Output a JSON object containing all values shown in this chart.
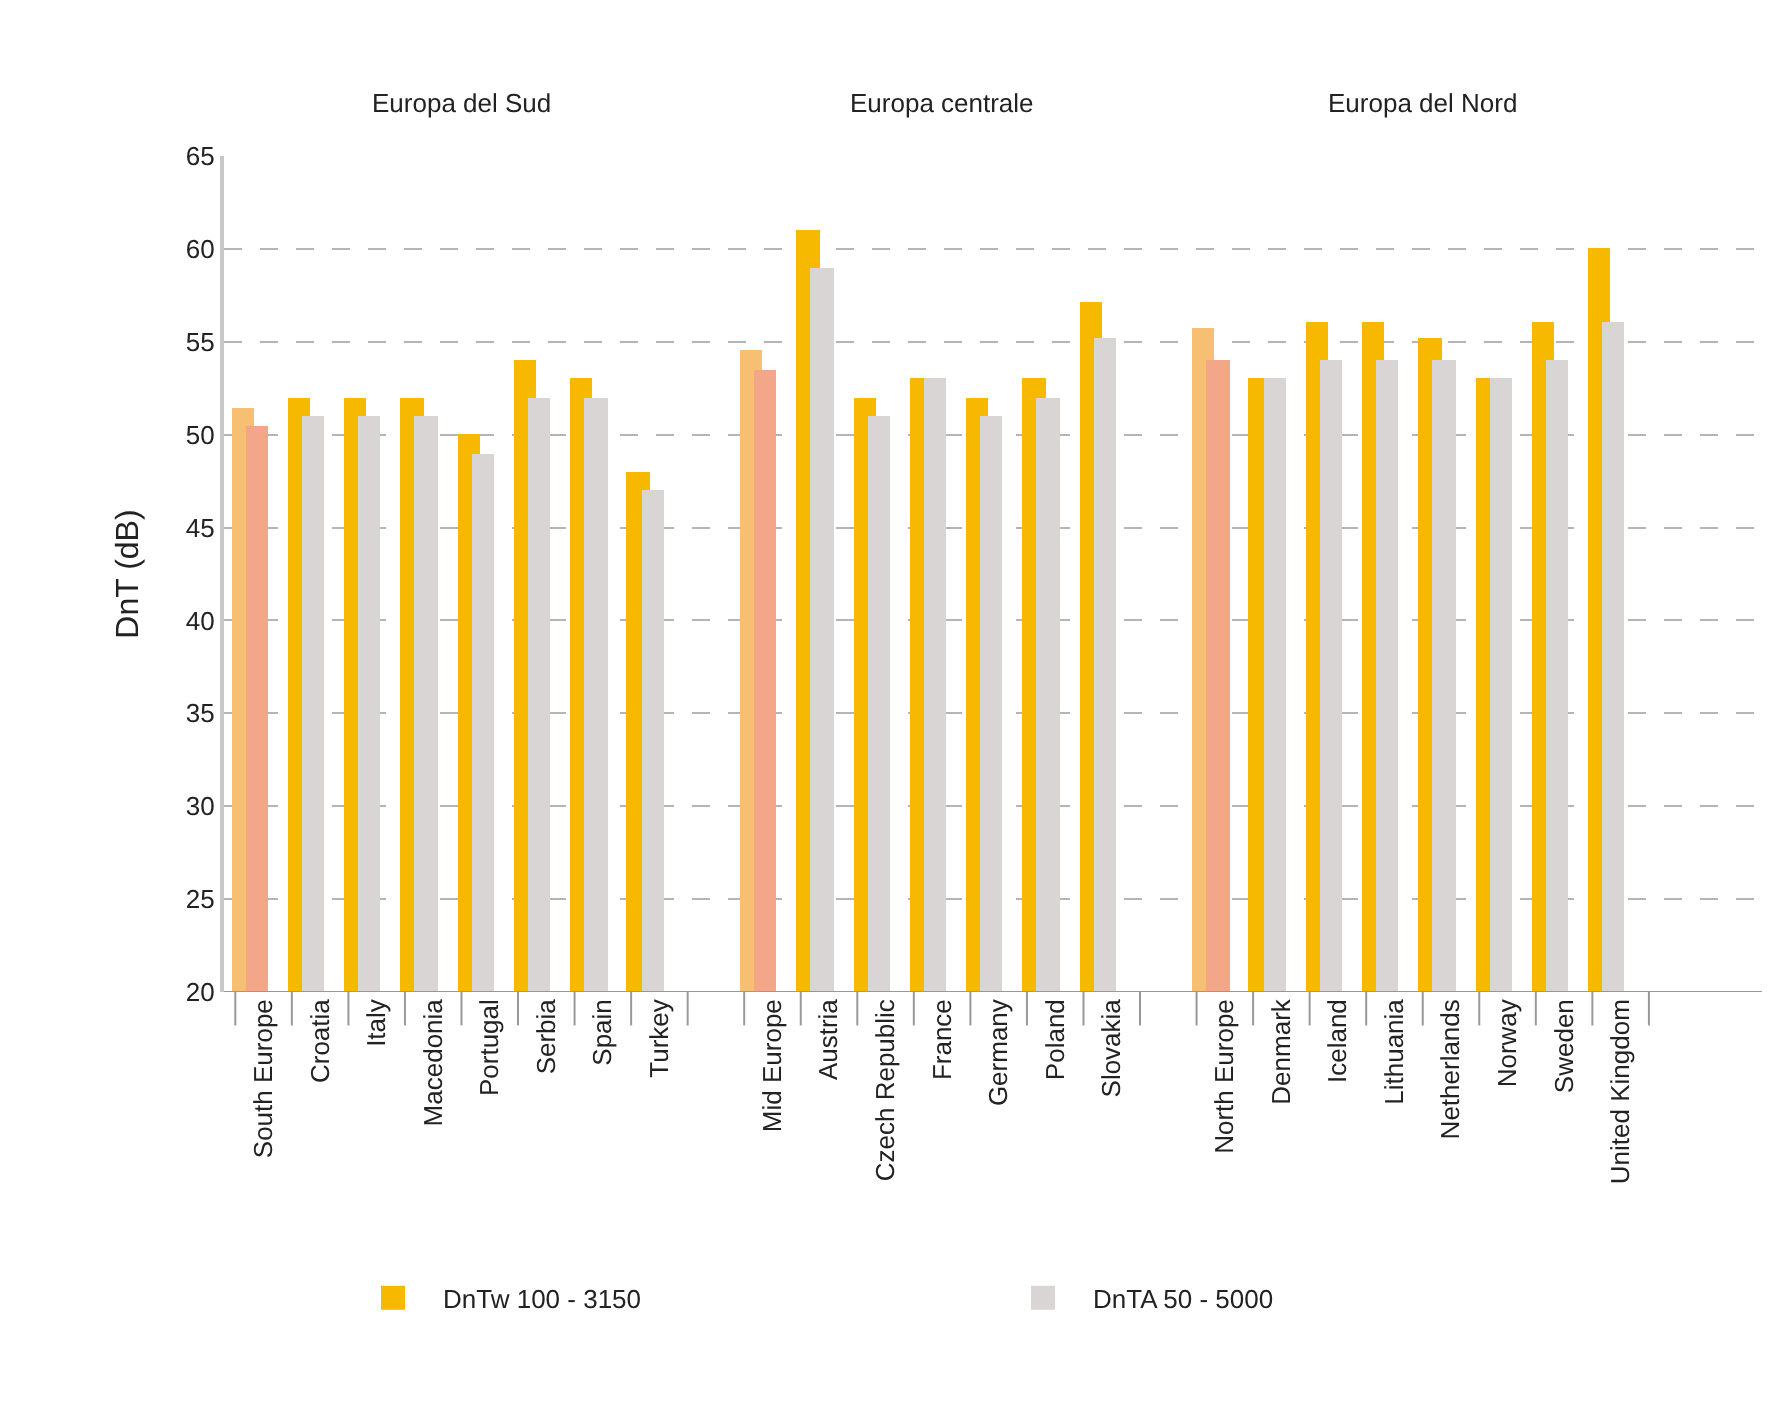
{
  "chart_data": {
    "type": "bar",
    "ylabel": "DnT (dB)",
    "categories": [
      "South Europe",
      "Croatia",
      "Italy",
      "Macedonia",
      "Portugal",
      "Serbia",
      "Spain",
      "Turkey",
      null,
      "Mid Europe",
      "Austria",
      "Czech Republic",
      "France",
      "Germany",
      "Poland",
      "Slovakia",
      null,
      "North Europe",
      "Denmark",
      "Iceland",
      "Lithuania",
      "Netherlands",
      "Norway",
      "Sweden",
      "United Kingdom",
      null,
      null
    ],
    "series": [
      {
        "name": "DnTw 100 - 3150",
        "color": "#f7b900",
        "colors": [
          "#f7bf72",
          "#f7b900",
          "#f7b900",
          "#f7b900",
          "#f7b900",
          "#f7b900",
          "#f7b900",
          "#f7b900",
          null,
          "#f7bf72",
          "#f7b900",
          "#f7b900",
          "#f7b900",
          "#f7b900",
          "#f7b900",
          "#f7b900",
          null,
          "#f7bf72",
          "#f7b900",
          "#f7b900",
          "#f7b900",
          "#f7b900",
          "#f7b900",
          "#f7b900",
          "#f7b900",
          null,
          null
        ],
        "values": [
          51.4,
          52,
          52,
          52,
          50,
          54,
          53,
          48,
          null,
          54.6,
          61,
          52,
          53,
          52,
          53,
          57.1,
          null,
          55.7,
          53,
          56.1,
          56.1,
          55.2,
          53,
          56.1,
          60,
          null,
          null
        ]
      },
      {
        "name": "DnTA 50 - 5000",
        "color": "#d9d5d4",
        "colors": [
          "#f3a688",
          "#d9d5d4",
          "#d9d5d4",
          "#d9d5d4",
          "#d9d5d4",
          "#d9d5d4",
          "#d9d5d4",
          "#d9d5d4",
          null,
          "#f3a688",
          "#d9d5d4",
          "#d9d5d4",
          "#d9d5d4",
          "#d9d5d4",
          "#d9d5d4",
          "#d9d5d4",
          null,
          "#f3a688",
          "#d9d5d4",
          "#d9d5d4",
          "#d9d5d4",
          "#d9d5d4",
          "#d9d5d4",
          "#d9d5d4",
          "#d9d5d4",
          null,
          null
        ],
        "values": [
          50.5,
          51,
          51,
          51,
          49,
          52,
          52,
          47,
          null,
          53.5,
          59,
          51,
          53,
          51,
          52,
          55.2,
          null,
          54,
          53,
          54,
          54,
          54,
          53,
          54,
          56.1,
          null,
          null
        ]
      }
    ],
    "ylim": [
      20,
      65
    ],
    "yticks": [
      20,
      25,
      30,
      35,
      40,
      45,
      50,
      55,
      60,
      65
    ],
    "grid": "y",
    "legend": "bottom",
    "annotations": [
      "Europa del Sud",
      "Europa centrale",
      "Europa del Nord"
    ]
  }
}
